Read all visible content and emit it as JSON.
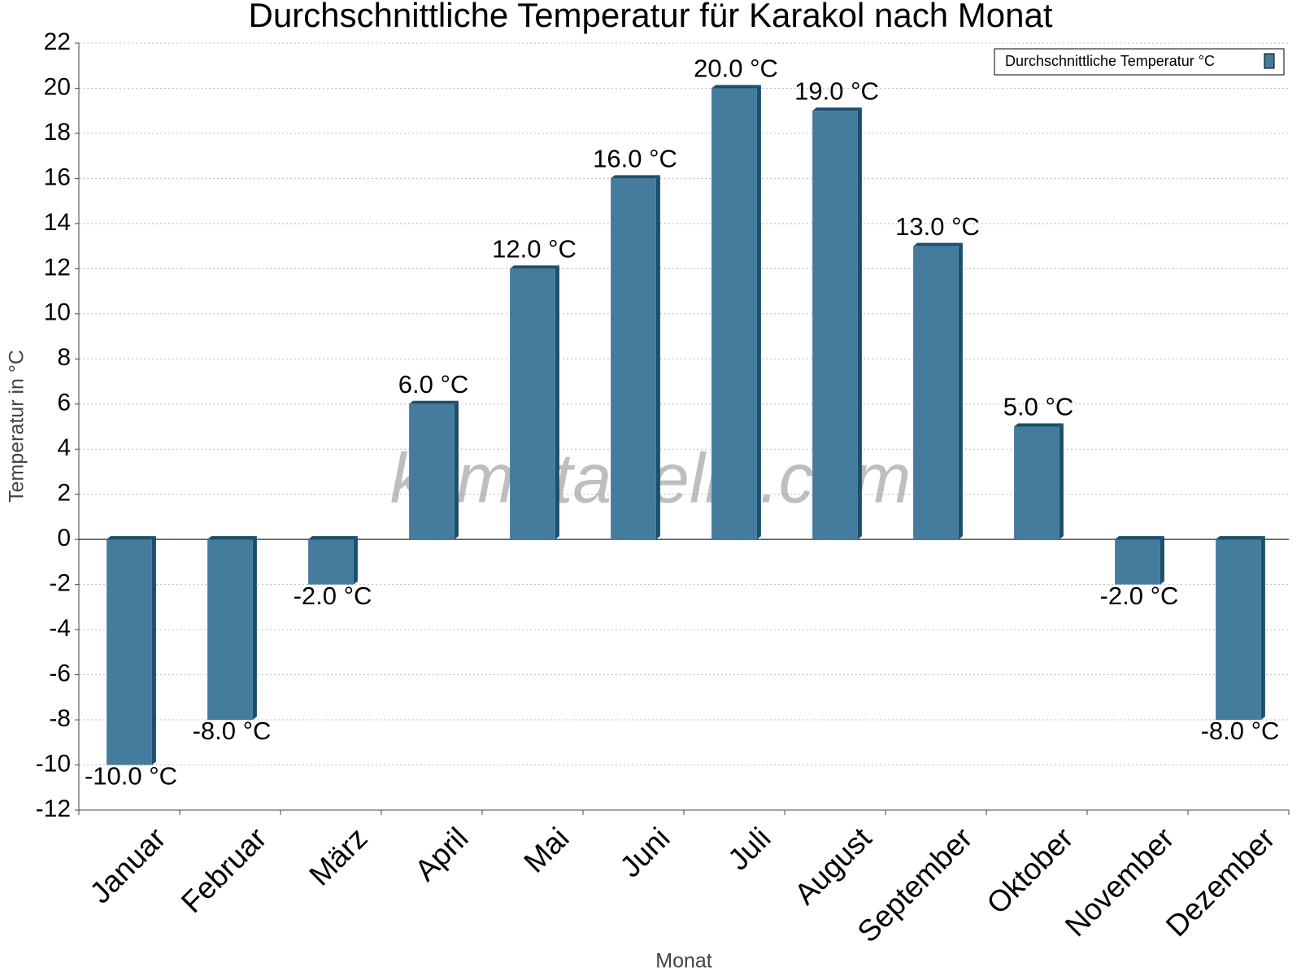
{
  "chart_data": {
    "type": "bar",
    "title": "Durchschnittliche Temperatur für Karakol nach Monat",
    "x_label": "Monat",
    "y_label": "Temperatur in °C",
    "watermark": "klimatabelle.com",
    "categories": [
      "Januar",
      "Februar",
      "März",
      "April",
      "Mai",
      "Juni",
      "Juli",
      "August",
      "September",
      "Oktober",
      "November",
      "Dezember"
    ],
    "series": [
      {
        "name": "Durchschnittliche Temperatur °C",
        "color": "#457b9d",
        "values": [
          -10,
          -8,
          -2,
          6,
          12,
          16,
          20,
          19,
          13,
          5,
          -2,
          -8
        ],
        "value_labels": [
          "-10.0 °C",
          "-8.0 °C",
          "-2.0 °C",
          "6.0 °C",
          "12.0 °C",
          "16.0 °C",
          "20.0 °C",
          "19.0 °C",
          "13.0 °C",
          "5.0 °C",
          "-2.0 °C",
          "-8.0 °C"
        ]
      }
    ],
    "ylim": [
      -12,
      22
    ],
    "yticks": [
      -12,
      -10,
      -8,
      -6,
      -4,
      -2,
      0,
      2,
      4,
      6,
      8,
      10,
      12,
      14,
      16,
      18,
      20,
      22
    ],
    "grid": true,
    "legend": "top-right"
  }
}
